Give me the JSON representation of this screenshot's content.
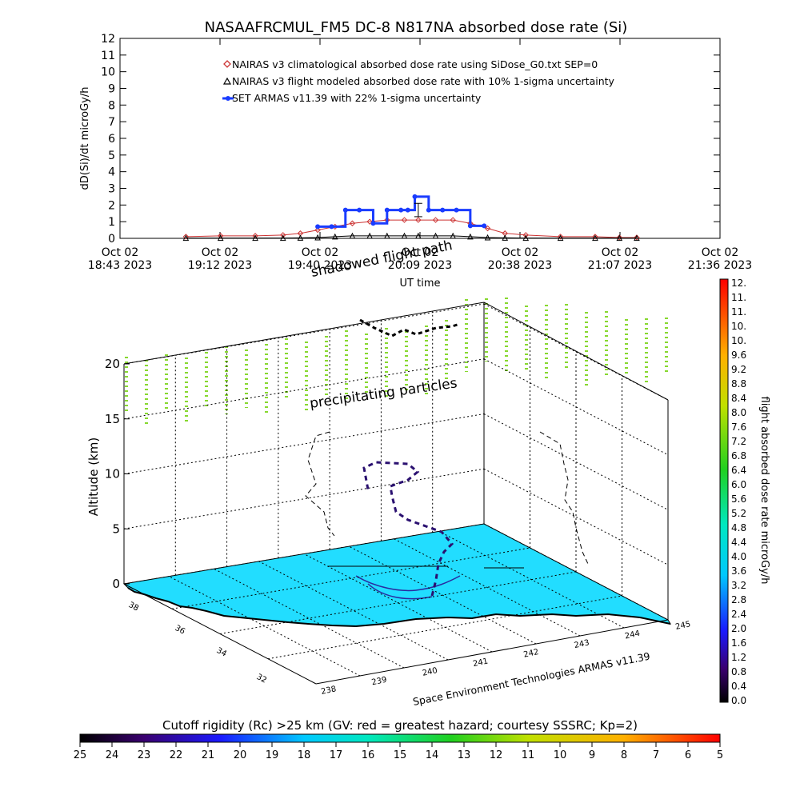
{
  "header": {
    "title": "NASAAFRCMUL_FM5 DC-8   N817NA absorbed dose rate (Si)"
  },
  "top_chart": {
    "ylabel": "dD(Si)/dt microGy/h",
    "xlabel": "UT time",
    "legend": [
      "NAIRAS v3 climatological absorbed dose rate using SiDose_G0.txt SEP=0",
      "NAIRAS v3 flight modeled absorbed dose rate with 10% 1-sigma uncertainty",
      "SET ARMAS v11.39 with 22% 1-sigma uncertainty"
    ],
    "x_tick_dates": [
      "Oct 02",
      "Oct 02",
      "Oct 02",
      "Oct 02",
      "Oct 02",
      "Oct 02",
      "Oct 02"
    ],
    "x_tick_times": [
      "18:43 2023",
      "19:12 2023",
      "19:40 2023",
      "20:09 2023",
      "20:38 2023",
      "21:07 2023",
      "21:36 2023"
    ],
    "y_ticks": [
      "0",
      "1",
      "2",
      "3",
      "4",
      "5",
      "6",
      "7",
      "8",
      "9",
      "10",
      "11",
      "12"
    ]
  },
  "scene_3d": {
    "zlabel": "Altitude (km)",
    "z_ticks": [
      "0",
      "5",
      "10",
      "15",
      "20"
    ],
    "lon_ticks": [
      "238",
      "239",
      "240",
      "241",
      "242",
      "243",
      "244",
      "245"
    ],
    "lat_ticks": [
      "32",
      "34",
      "36",
      "38"
    ],
    "annotation_precip": "precipitating particles",
    "annotation_shadowed": "shadowed flight path",
    "credit": "Space Environment Technologies ARMAS v11.39"
  },
  "colorbar_right": {
    "label": "flight absorbed dose rate microGy/h",
    "ticks": [
      "0.0",
      "0.4",
      "0.8",
      "1.2",
      "1.6",
      "2.0",
      "2.4",
      "2.8",
      "3.2",
      "3.6",
      "4.0",
      "4.4",
      "4.8",
      "5.2",
      "5.6",
      "6.0",
      "6.4",
      "6.8",
      "7.2",
      "7.6",
      "8.0",
      "8.4",
      "8.8",
      "9.2",
      "9.6",
      "10.",
      "10.",
      "11.",
      "11.",
      "12."
    ]
  },
  "colorbar_bottom": {
    "label": "Cutoff rigidity (Rc) >25 km (GV: red = greatest hazard; courtesy SSSRC; Kp=2)",
    "ticks": [
      "25",
      "24",
      "23",
      "22",
      "21",
      "20",
      "19",
      "18",
      "17",
      "16",
      "15",
      "14",
      "13",
      "12",
      "11",
      "10",
      "9",
      "8",
      "7",
      "6",
      "5"
    ]
  },
  "chart_data": {
    "type": "line",
    "x_range": [
      "2023-10-02 18:43",
      "2023-10-02 21:36"
    ],
    "ylim": [
      0,
      12
    ],
    "series": [
      {
        "name": "NAIRAS v3 climatological absorbed dose rate using SiDose_G0.txt SEP=0",
        "color": "#cc3333",
        "marker": "diamond",
        "x": [
          "19:02",
          "19:12",
          "19:22",
          "19:30",
          "19:35",
          "19:40",
          "19:45",
          "19:50",
          "19:55",
          "20:00",
          "20:05",
          "20:09",
          "20:14",
          "20:19",
          "20:24",
          "20:29",
          "20:34",
          "20:40",
          "20:50",
          "21:00",
          "21:07",
          "21:12"
        ],
        "values": [
          0.1,
          0.15,
          0.15,
          0.2,
          0.3,
          0.5,
          0.7,
          0.9,
          1.0,
          1.1,
          1.1,
          1.1,
          1.1,
          1.1,
          0.9,
          0.6,
          0.3,
          0.2,
          0.1,
          0.1,
          0.05,
          0.05
        ]
      },
      {
        "name": "NAIRAS v3 flight modeled absorbed dose rate with 10% 1-sigma uncertainty",
        "color": "#000000",
        "marker": "triangle",
        "x": [
          "19:02",
          "19:12",
          "19:22",
          "19:30",
          "19:35",
          "19:40",
          "19:45",
          "19:50",
          "19:55",
          "20:00",
          "20:05",
          "20:09",
          "20:14",
          "20:19",
          "20:24",
          "20:29",
          "20:34",
          "20:40",
          "20:50",
          "21:00",
          "21:07",
          "21:12"
        ],
        "values": [
          0.02,
          0.02,
          0.02,
          0.02,
          0.03,
          0.05,
          0.1,
          0.15,
          0.15,
          0.15,
          0.15,
          0.15,
          0.15,
          0.15,
          0.1,
          0.05,
          0.03,
          0.02,
          0.02,
          0.02,
          0.02,
          0.02
        ]
      },
      {
        "name": "SET ARMAS v11.39 with 22% 1-sigma uncertainty",
        "color": "#1a3cff",
        "marker": "circle",
        "x": [
          "19:40",
          "19:44",
          "19:48",
          "19:52",
          "19:56",
          "20:00",
          "20:04",
          "20:06",
          "20:08",
          "20:12",
          "20:16",
          "20:20",
          "20:24",
          "20:28"
        ],
        "values": [
          0.7,
          0.7,
          1.7,
          1.7,
          0.9,
          1.7,
          1.7,
          1.7,
          2.5,
          1.7,
          1.7,
          1.7,
          0.75,
          0.75
        ],
        "error_bar": {
          "x": "20:09",
          "value": 1.7,
          "low": 1.3,
          "high": 2.1
        }
      }
    ]
  }
}
